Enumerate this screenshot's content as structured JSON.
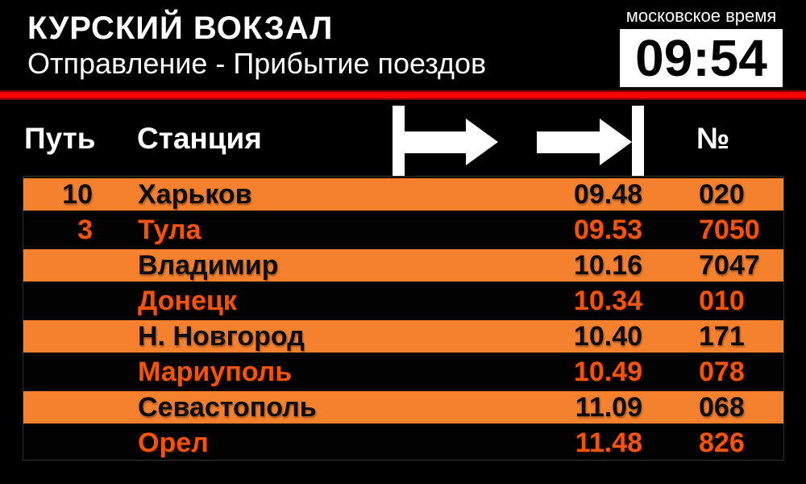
{
  "header": {
    "station_name": "КУРСКИЙ ВОКЗАЛ",
    "subtitle": "Отправление - Прибытие поездов",
    "clock_label": "московское время",
    "clock_time": "09:54"
  },
  "table": {
    "columns": {
      "track": "Путь",
      "station": "Станция",
      "number": "№"
    },
    "icons": {
      "departure": "departure-arrow-icon",
      "arrival": "arrival-arrow-icon"
    },
    "rows": [
      {
        "track": "10",
        "station": "Харьков",
        "time": "09.48",
        "number": "020",
        "variant": "orange"
      },
      {
        "track": "3",
        "station": "Тула",
        "time": "09.53",
        "number": "7050",
        "variant": "black"
      },
      {
        "track": "",
        "station": "Владимир",
        "time": "10.16",
        "number": "7047",
        "variant": "orange"
      },
      {
        "track": "",
        "station": "Донецк",
        "time": "10.34",
        "number": "010",
        "variant": "black"
      },
      {
        "track": "",
        "station": "Н. Новгород",
        "time": "10.40",
        "number": "171",
        "variant": "orange"
      },
      {
        "track": "",
        "station": "Мариуполь",
        "time": "10.49",
        "number": "078",
        "variant": "black"
      },
      {
        "track": "",
        "station": "Севастополь",
        "time": "11.09",
        "number": "068",
        "variant": "orange"
      },
      {
        "track": "",
        "station": "Орел",
        "time": "11.48",
        "number": "826",
        "variant": "black"
      }
    ]
  },
  "colors": {
    "background": "#000000",
    "row_orange": "#F5812F",
    "text_orange": "#F2540A",
    "divider_red": "#F60000",
    "text_white": "#FFFFFF",
    "text_black": "#0D0D0D"
  }
}
